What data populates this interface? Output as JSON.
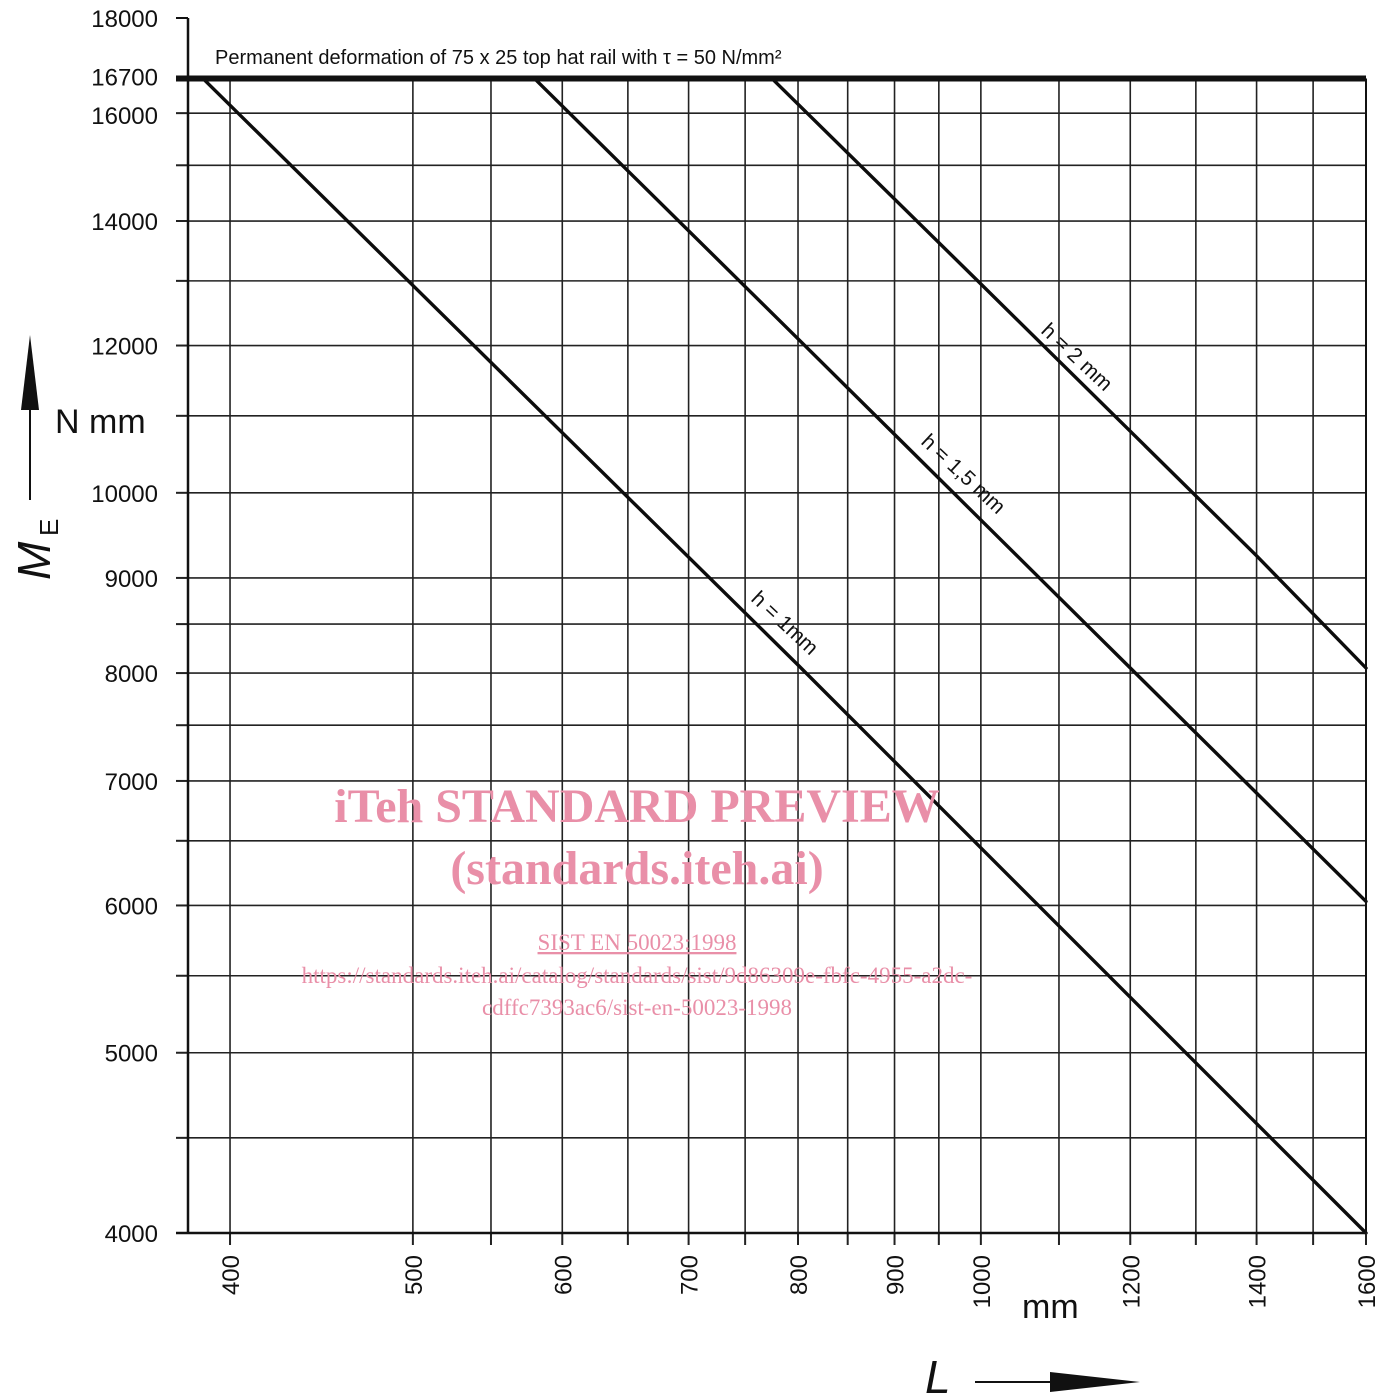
{
  "chart_data": {
    "type": "line",
    "title": "Permanent deformation of 75 x  25 top hat rail with τ = 50 N/mm²",
    "y_axis": {
      "symbol": "M",
      "subscript": "E",
      "unit": "N mm",
      "scale": "log",
      "range": [
        4000,
        18000
      ],
      "tick_labels": [
        "18000",
        "16700",
        "16000",
        "14000",
        "12000",
        "10000",
        "9000",
        "8000",
        "7000",
        "6000",
        "5000",
        "4000"
      ],
      "tick_values": [
        18000,
        16700,
        16000,
        14000,
        12000,
        10000,
        9000,
        8000,
        7000,
        6000,
        5000,
        4000
      ],
      "minor_gridlines": [
        15000,
        13000,
        11000,
        8500,
        7500,
        6500,
        5500,
        4500
      ]
    },
    "x_axis": {
      "symbol": "L",
      "unit": "mm",
      "scale": "log",
      "range": [
        380,
        1600
      ],
      "tick_labels": [
        "400",
        "500",
        "600",
        "700",
        "800",
        "900",
        "1000",
        "1200",
        "1400",
        "1600"
      ],
      "tick_values": [
        400,
        500,
        600,
        700,
        800,
        900,
        1000,
        1200,
        1400,
        1600
      ],
      "minor_gridlines": [
        550,
        650,
        750,
        850,
        950,
        1100,
        1300,
        1500
      ]
    },
    "reference_line": {
      "y": 16700
    },
    "grid": true,
    "series": [
      {
        "name": "h = 1mm",
        "points": [
          [
            387,
            16700
          ],
          [
            800,
            8080
          ],
          [
            1600,
            4000
          ]
        ]
      },
      {
        "name": "h = 1,5 mm",
        "points": [
          [
            580,
            16700
          ],
          [
            800,
            12100
          ],
          [
            1200,
            8050
          ],
          [
            1600,
            6030
          ]
        ]
      },
      {
        "name": "h = 2 mm",
        "points": [
          [
            775,
            16700
          ],
          [
            1000,
            12950
          ],
          [
            1400,
            9250
          ],
          [
            1600,
            8050
          ]
        ]
      }
    ]
  },
  "watermark": {
    "line1": "iTeh STANDARD PREVIEW",
    "line2": "(standards.iteh.ai)",
    "line3": "SIST EN 50023:1998",
    "line4": "https://standards.iteh.ai/catalog/standards/sist/9d86309e-fbfc-4955-a2dc-",
    "line5": "cdffc7393ac6/sist-en-50023-1998"
  }
}
